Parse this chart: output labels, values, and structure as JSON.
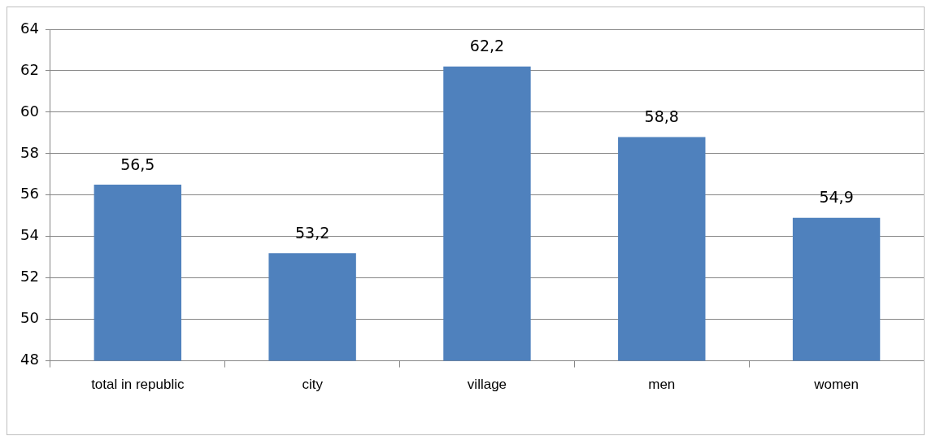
{
  "chart_data": {
    "type": "bar",
    "categories": [
      "total in republic",
      "city",
      "village",
      "men",
      "women"
    ],
    "values": [
      56.5,
      53.2,
      62.2,
      58.8,
      54.9
    ],
    "value_labels": [
      "56,5",
      "53,2",
      "62,2",
      "58,8",
      "54,9"
    ],
    "color": "#4f81bd",
    "ylim": [
      48,
      64
    ],
    "yticks": [
      48,
      50,
      52,
      54,
      56,
      58,
      60,
      62,
      64
    ],
    "grid": "y",
    "legend": false
  }
}
